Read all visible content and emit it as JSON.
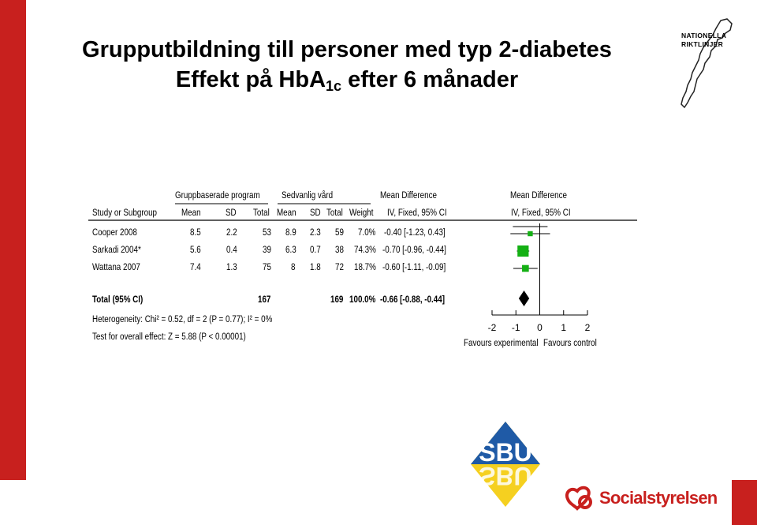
{
  "title": {
    "line1": "Grupputbildning till personer med typ 2-diabetes",
    "line2_prefix": "Effekt på HbA",
    "line2_sub": "1c",
    "line2_suffix": " efter 6 månader"
  },
  "logos": {
    "nationella": "NATIONELLA",
    "riktlinjer": "RIKTLINJER",
    "socialstyrelsen": "Socialstyrelsen",
    "sbu_text": "SBU"
  },
  "colors": {
    "brand_red": "#c8201e",
    "marker_green": "#14b014",
    "sbu_blue": "#1f5aa6",
    "sbu_yellow": "#f5d020"
  },
  "chart_data": {
    "type": "forest",
    "group_headers": {
      "experimental": "Gruppbaserade program",
      "control": "Sedvanlig vård",
      "md_left": "Mean Difference",
      "md_right": "Mean Difference"
    },
    "columns": [
      "Study or Subgroup",
      "Mean",
      "SD",
      "Total",
      "Mean",
      "SD",
      "Total",
      "Weight",
      "IV, Fixed, 95% CI",
      "IV, Fixed, 95% CI"
    ],
    "studies": [
      {
        "name": "Cooper 2008",
        "exp_mean": "8.5",
        "exp_sd": "2.2",
        "exp_total": "53",
        "ctl_mean": "8.9",
        "ctl_sd": "2.3",
        "ctl_total": "59",
        "weight": "7.0%",
        "ci_text": "-0.40 [-1.23, 0.43]",
        "md": -0.4,
        "lo": -1.23,
        "hi": 0.43,
        "w": 7.0
      },
      {
        "name": "Sarkadi 2004*",
        "exp_mean": "5.6",
        "exp_sd": "0.4",
        "exp_total": "39",
        "ctl_mean": "6.3",
        "ctl_sd": "0.7",
        "ctl_total": "38",
        "weight": "74.3%",
        "ci_text": "-0.70 [-0.96, -0.44]",
        "md": -0.7,
        "lo": -0.96,
        "hi": -0.44,
        "w": 74.3
      },
      {
        "name": "Wattana 2007",
        "exp_mean": "7.4",
        "exp_sd": "1.3",
        "exp_total": "75",
        "ctl_mean": "8",
        "ctl_sd": "1.8",
        "ctl_total": "72",
        "weight": "18.7%",
        "ci_text": "-0.60 [-1.11, -0.09]",
        "md": -0.6,
        "lo": -1.11,
        "hi": -0.09,
        "w": 18.7
      }
    ],
    "total": {
      "name": "Total (95% CI)",
      "exp_total": "167",
      "ctl_total": "169",
      "weight": "100.0%",
      "ci_text": "-0.66 [-0.88, -0.44]",
      "md": -0.66,
      "lo": -0.88,
      "hi": -0.44
    },
    "heterogeneity": "Heterogeneity: Chi² = 0.52, df = 2 (P = 0.77); I² = 0%",
    "overall_effect": "Test for overall effect: Z = 5.88 (P < 0.00001)",
    "x_axis": {
      "ticks": [
        -2,
        -1,
        0,
        1,
        2
      ],
      "tick_labels": [
        "-2",
        "-1",
        "0",
        "1",
        "2"
      ],
      "range": [
        -2,
        2
      ]
    },
    "favours_left": "Favours experimental",
    "favours_right": "Favours control"
  }
}
